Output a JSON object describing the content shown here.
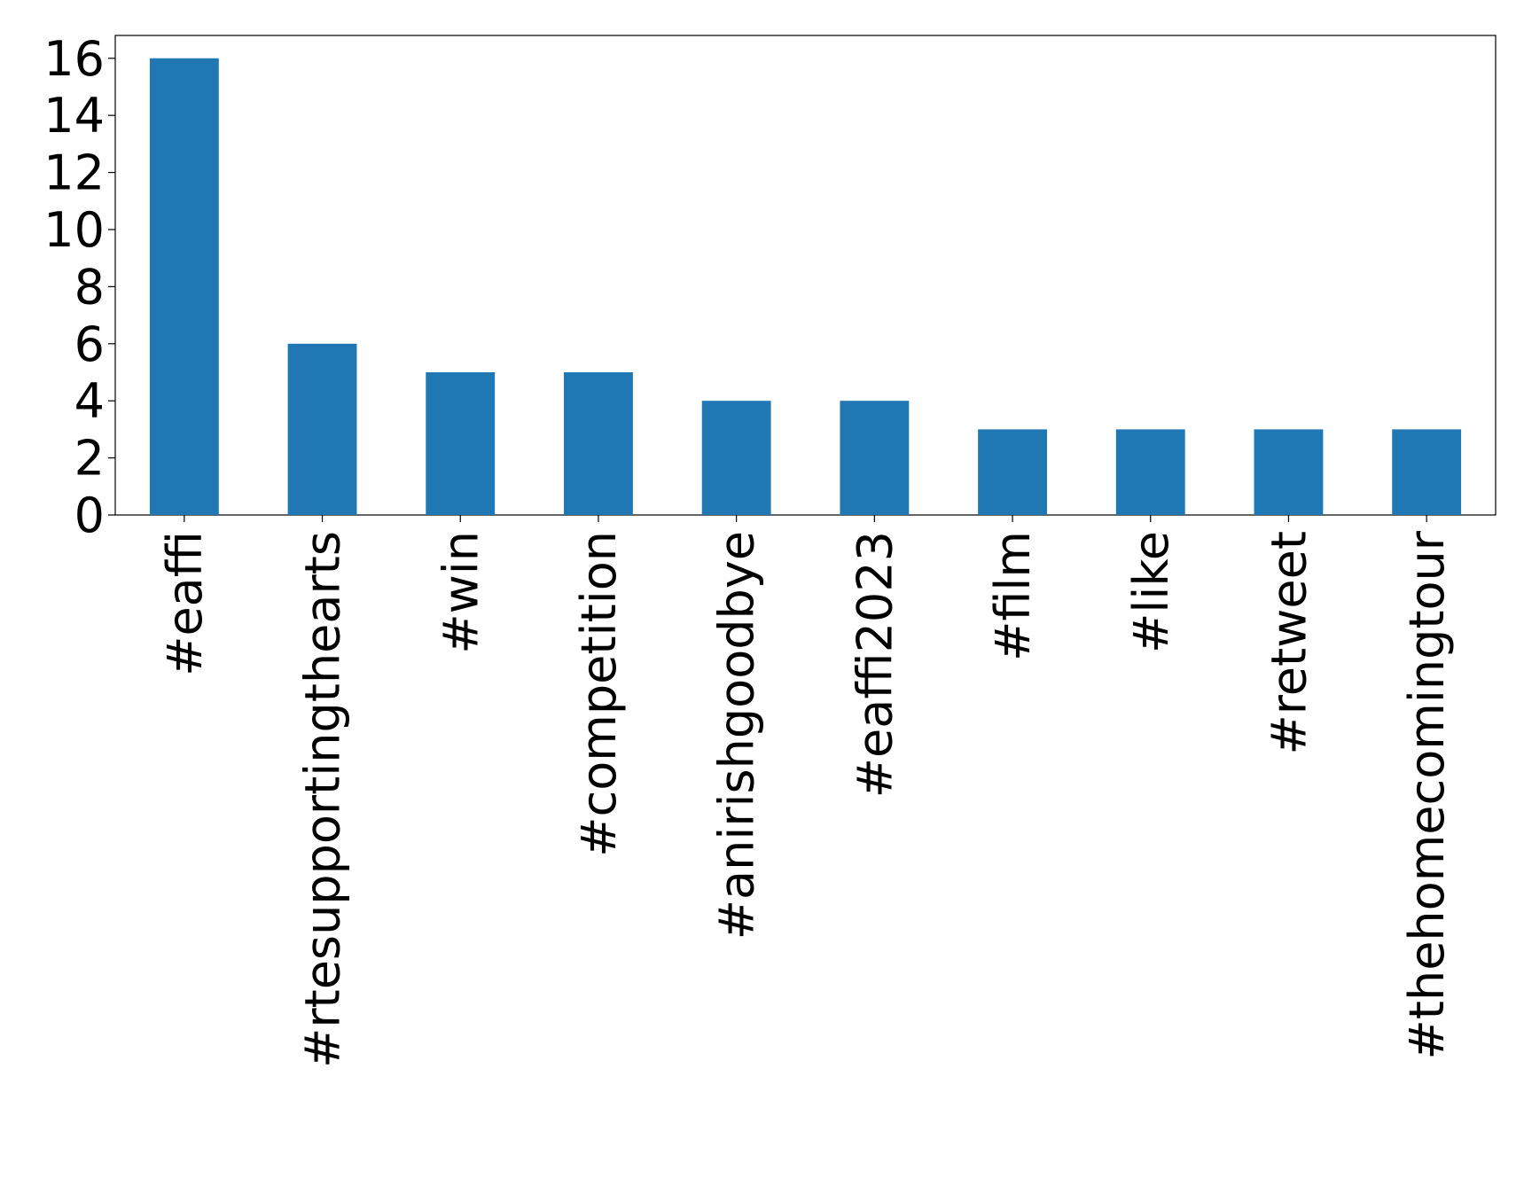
{
  "chart_data": {
    "type": "bar",
    "categories": [
      "#eaffi",
      "#rtesupportingthearts",
      "#win",
      "#competition",
      "#anirishgoodbye",
      "#eaffi2023",
      "#film",
      "#like",
      "#retweet",
      "#thehomecomingtour"
    ],
    "values": [
      16,
      6,
      5,
      5,
      4,
      4,
      3,
      3,
      3,
      3
    ],
    "color": "#1f77b4",
    "ylim": [
      0,
      16.8
    ],
    "yticks": [
      0,
      2,
      4,
      6,
      8,
      10,
      12,
      14,
      16
    ],
    "grid": false
  }
}
